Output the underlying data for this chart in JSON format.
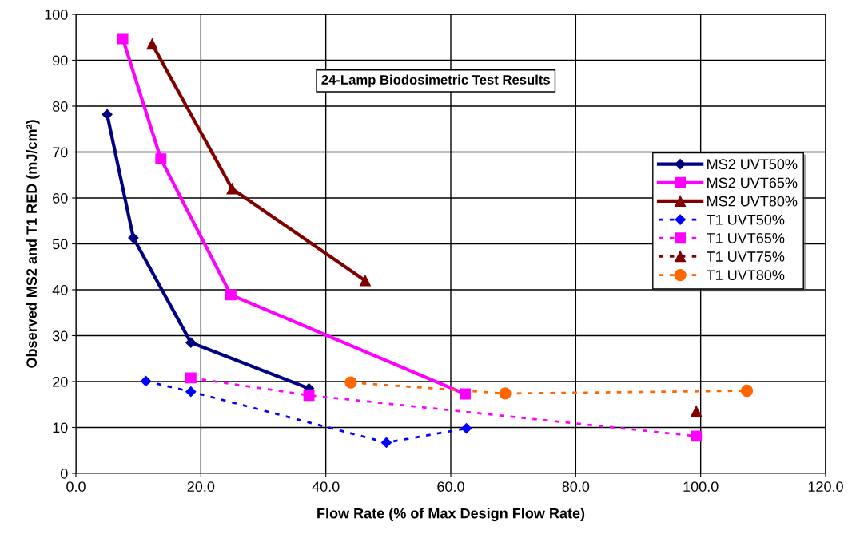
{
  "chart_data": {
    "type": "line",
    "title": "24-Lamp Biodosimetric Test Results",
    "xlabel": "Flow Rate (% of Max Design Flow Rate)",
    "ylabel": "Observed MS2 and T1 RED (mJ/cm²)",
    "xlim": [
      0,
      120
    ],
    "xticks": [
      {
        "value": 0,
        "label": "0.0"
      },
      {
        "value": 20,
        "label": "20.0"
      },
      {
        "value": 40,
        "label": "40.0"
      },
      {
        "value": 60,
        "label": "60.0"
      },
      {
        "value": 80,
        "label": "80.0"
      },
      {
        "value": 100,
        "label": "100.0"
      },
      {
        "value": 120,
        "label": "120.0"
      }
    ],
    "ylim": [
      0,
      100
    ],
    "yticks": [
      0,
      10,
      20,
      30,
      40,
      50,
      60,
      70,
      80,
      90,
      100
    ],
    "grid": true,
    "legend": "right",
    "series": [
      {
        "name": "MS2 UVT50%",
        "color": "#000080",
        "marker": "diamond",
        "line_style": "solid",
        "x": [
          5.0,
          9.2,
          18.4,
          37.3
        ],
        "values": [
          78.2,
          51.3,
          28.5,
          18.5
        ]
      },
      {
        "name": "MS2 UVT65%",
        "color": "#ff00ff",
        "marker": "square",
        "line_style": "solid",
        "x": [
          7.5,
          13.6,
          24.8,
          62.3
        ],
        "values": [
          94.7,
          68.5,
          38.9,
          17.3
        ]
      },
      {
        "name": "MS2 UVT80%",
        "color": "#800000",
        "marker": "triangle",
        "line_style": "solid",
        "x": [
          12.2,
          25.0,
          46.3
        ],
        "values": [
          93.5,
          62.0,
          42.0
        ]
      },
      {
        "name": "T1 UVT50%",
        "color": "#0000ff",
        "marker": "diamond",
        "line_style": "dashed",
        "x": [
          11.2,
          18.4,
          49.7,
          62.5
        ],
        "values": [
          20.1,
          17.8,
          6.7,
          9.8
        ]
      },
      {
        "name": "T1 UVT65%",
        "color": "#ff00ff",
        "marker": "square",
        "line_style": "dashed",
        "x": [
          18.4,
          37.3,
          99.3
        ],
        "values": [
          20.8,
          17.0,
          8.1
        ]
      },
      {
        "name": "T1 UVT75%",
        "color": "#800000",
        "marker": "triangle",
        "line_style": "dashed",
        "x": [
          99.3
        ],
        "values": [
          13.5
        ]
      },
      {
        "name": "T1 UVT80%",
        "color": "#ff6600",
        "marker": "circle",
        "line_style": "dashed",
        "x": [
          44.0,
          68.7,
          107.4
        ],
        "values": [
          19.8,
          17.4,
          18.0
        ]
      }
    ]
  }
}
